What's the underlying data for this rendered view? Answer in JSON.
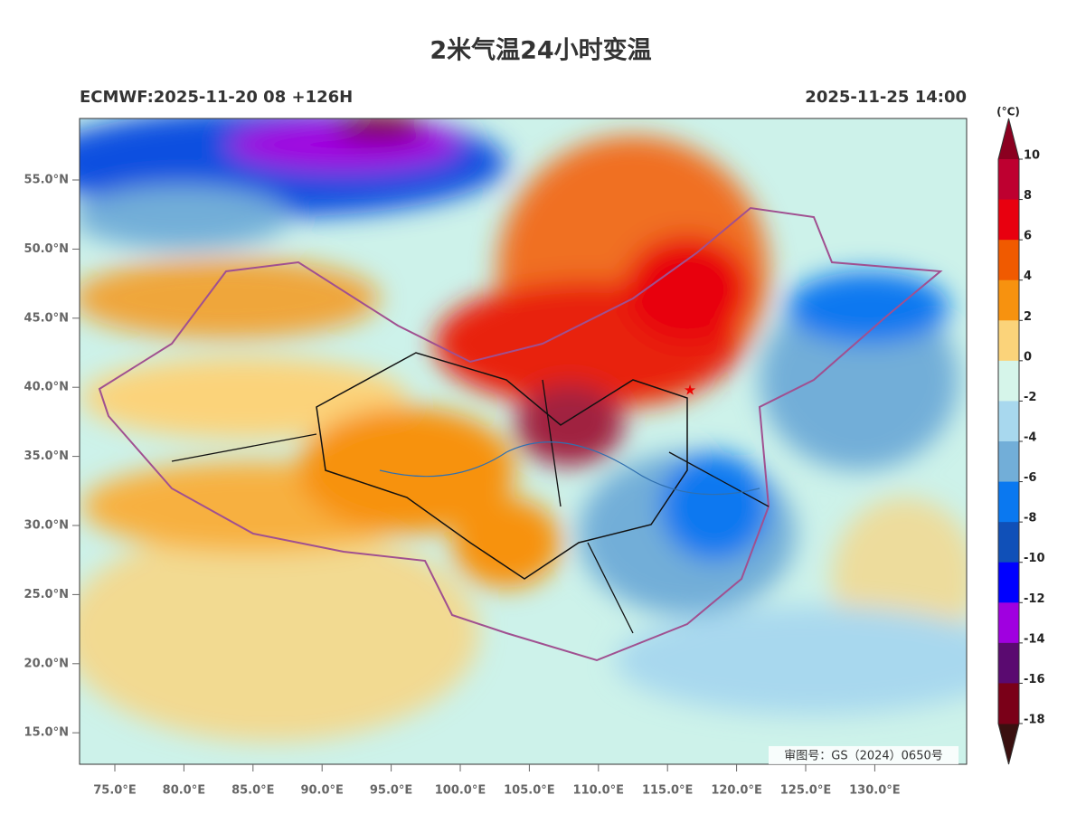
{
  "title": "2米气温24小时变温",
  "subtitle_left": "ECMWF:2025-11-20 08 +126H",
  "subtitle_right": "2025-11-25 14:00",
  "lat_ticks": [
    "55.0°N",
    "50.0°N",
    "45.0°N",
    "40.0°N",
    "35.0°N",
    "30.0°N",
    "25.0°N",
    "20.0°N",
    "15.0°N"
  ],
  "lon_ticks": [
    "75.0°E",
    "80.0°E",
    "85.0°E",
    "90.0°E",
    "95.0°E",
    "100.0°E",
    "105.0°E",
    "110.0°E",
    "115.0°E",
    "120.0°E",
    "125.0°E",
    "130.0°E"
  ],
  "colorbar": {
    "unit": "(°C)",
    "labels": [
      "10",
      "8",
      "6",
      "4",
      "2",
      "0",
      "-2",
      "-4",
      "-6",
      "-8",
      "-10",
      "-12",
      "-14",
      "-16",
      "-18"
    ],
    "colors": [
      "#be0030",
      "#e8000f",
      "#f05a00",
      "#f7920f",
      "#fbd37a",
      "#d6f5ea",
      "#a8d8ee",
      "#72aed8",
      "#0a78f0",
      "#1050b8",
      "#0000ff",
      "#a000e0",
      "#5a0a70",
      "#7a0018"
    ],
    "over_color": "#8b0020",
    "under_color": "#3a1010"
  },
  "credit": "审图号：GS（2024）0650号"
}
